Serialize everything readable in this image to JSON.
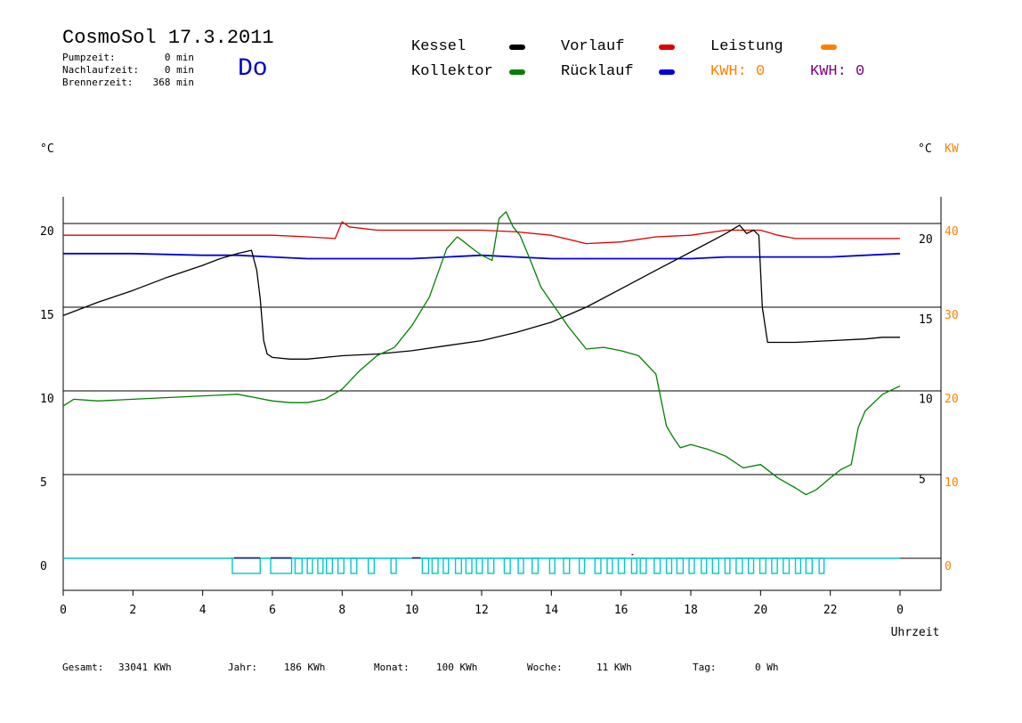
{
  "header": {
    "title": "CosmoSol 17.3.2011",
    "day": "Do",
    "stats": [
      {
        "label": "Pumpzeit:",
        "value": "0 min"
      },
      {
        "label": "Nachlaufzeit:",
        "value": "0 min"
      },
      {
        "label": "Brennerzeit:",
        "value": "368 min"
      }
    ]
  },
  "legend": {
    "kessel": "Kessel",
    "kollektor": "Kollektor",
    "vorlauf": "Vorlauf",
    "ruecklauf": "Rücklauf",
    "leistung": "Leistung",
    "kwh_orange": "KWH: 0",
    "kwh_purple": "KWH: 0"
  },
  "colors": {
    "kessel": "#000000",
    "kollektor": "#008000",
    "vorlauf": "#dc0000",
    "ruecklauf": "#0000dc",
    "leistung": "#ff8000",
    "kwh_purple": "#800080",
    "pump": "#00c8c8",
    "day": "#0000c8"
  },
  "footer": {
    "gesamt_label": "Gesamt:",
    "gesamt_value": "33041 KWh",
    "jahr_label": "Jahr:",
    "jahr_value": "186 KWh",
    "monat_label": "Monat:",
    "monat_value": "100 KWh",
    "woche_label": "Woche:",
    "woche_value": "11 KWh",
    "tag_label": "Tag:",
    "tag_value": "0 Wh"
  },
  "chart_data": {
    "type": "line",
    "ylabel_left": "°C",
    "ylabel_right_1": "°C",
    "ylabel_right_2": "KW",
    "xlabel": "Uhrzeit",
    "xlim": [
      0,
      24
    ],
    "ylim": [
      -1.5,
      22
    ],
    "x_tick_labels": [
      "0",
      "2",
      "4",
      "6",
      "8",
      "10",
      "12",
      "14",
      "16",
      "18",
      "20",
      "22",
      "0"
    ],
    "y_left_ticks": [
      0,
      5,
      10,
      15,
      20
    ],
    "y_right_mid_ticks": [
      5,
      10,
      15,
      20
    ],
    "y_right_kw_ticks": [
      0,
      10,
      20,
      30,
      40
    ],
    "grid": "horizontal",
    "series": [
      {
        "name": "Kessel",
        "key": "kessel",
        "x": [
          0,
          0.5,
          1,
          2,
          3,
          4,
          4.5,
          5,
          5.4,
          5.55,
          5.65,
          5.75,
          5.85,
          6,
          6.5,
          7,
          8,
          9,
          10,
          11,
          12,
          13,
          14,
          15,
          16,
          17,
          18,
          19,
          19.4,
          19.6,
          19.8,
          19.95,
          20.05,
          20.2,
          20.5,
          21,
          22,
          23,
          23.5,
          24
        ],
        "y": [
          14.5,
          14.9,
          15.3,
          16,
          16.8,
          17.5,
          17.9,
          18.2,
          18.4,
          17.2,
          15.5,
          13,
          12.2,
          12,
          11.9,
          11.9,
          12.1,
          12.2,
          12.4,
          12.7,
          13,
          13.5,
          14.1,
          15,
          16.1,
          17.2,
          18.3,
          19.4,
          19.9,
          19.4,
          19.6,
          19.3,
          15,
          12.9,
          12.9,
          12.9,
          13,
          13.1,
          13.2,
          13.2
        ]
      },
      {
        "name": "Kollektor",
        "key": "kollektor",
        "x": [
          0,
          0.3,
          1,
          2,
          3,
          4,
          5,
          5.5,
          6,
          6.5,
          7,
          7.5,
          8,
          8.5,
          9,
          9.5,
          10,
          10.5,
          11,
          11.3,
          11.5,
          11.8,
          12,
          12.3,
          12.5,
          12.7,
          12.9,
          13.1,
          13.4,
          13.7,
          14,
          14.5,
          15,
          15.5,
          16,
          16.5,
          17,
          17.3,
          17.5,
          17.7,
          18,
          18.5,
          19,
          19.5,
          20,
          20.5,
          21,
          21.3,
          21.6,
          22,
          22.3,
          22.6,
          22.8,
          23,
          23.5,
          24
        ],
        "y": [
          9.1,
          9.5,
          9.4,
          9.5,
          9.6,
          9.7,
          9.8,
          9.6,
          9.4,
          9.3,
          9.3,
          9.5,
          10.1,
          11.2,
          12.1,
          12.6,
          13.9,
          15.6,
          18.5,
          19.2,
          18.9,
          18.4,
          18.1,
          17.8,
          20.3,
          20.7,
          19.8,
          19.3,
          17.8,
          16.2,
          15.3,
          13.8,
          12.5,
          12.6,
          12.4,
          12.1,
          11,
          7.9,
          7.2,
          6.6,
          6.8,
          6.5,
          6.1,
          5.4,
          5.6,
          4.8,
          4.2,
          3.8,
          4.1,
          4.8,
          5.3,
          5.6,
          7.8,
          8.8,
          9.8,
          10.3
        ]
      },
      {
        "name": "Vorlauf",
        "key": "vorlauf",
        "x": [
          0,
          2,
          4,
          5,
          6,
          7,
          7.8,
          8,
          8.2,
          9,
          10,
          11,
          12,
          13,
          14,
          15,
          16,
          17,
          18,
          19,
          20,
          20.5,
          21,
          22,
          23,
          24
        ],
        "y": [
          19.3,
          19.3,
          19.3,
          19.3,
          19.3,
          19.2,
          19.1,
          20.1,
          19.8,
          19.6,
          19.6,
          19.6,
          19.6,
          19.5,
          19.3,
          18.8,
          18.9,
          19.2,
          19.3,
          19.6,
          19.6,
          19.3,
          19.1,
          19.1,
          19.1,
          19.1
        ]
      },
      {
        "name": "Rücklauf",
        "key": "ruecklauf",
        "x": [
          0,
          2,
          4,
          5,
          6,
          7,
          8,
          9,
          10,
          11,
          12,
          13,
          14,
          15,
          16,
          17,
          18,
          19,
          20,
          21,
          22,
          23,
          24
        ],
        "y": [
          18.2,
          18.2,
          18.1,
          18.1,
          18,
          17.9,
          17.9,
          17.9,
          17.9,
          18,
          18.1,
          18,
          17.9,
          17.9,
          17.9,
          17.9,
          17.9,
          18,
          18,
          18,
          18,
          18.1,
          18.2
        ]
      }
    ],
    "pump_pulses": {
      "series_name": "Pumpe",
      "ranges": [
        [
          4.85,
          5.65
        ],
        [
          5.95,
          6.55
        ],
        [
          6.65,
          6.85
        ],
        [
          7.0,
          7.15
        ],
        [
          7.3,
          7.45
        ],
        [
          7.55,
          7.72
        ],
        [
          7.88,
          8.05
        ],
        [
          8.25,
          8.42
        ],
        [
          8.75,
          8.92
        ],
        [
          9.4,
          9.55
        ],
        [
          10.3,
          10.48
        ],
        [
          10.58,
          10.75
        ],
        [
          10.9,
          11.05
        ],
        [
          11.25,
          11.42
        ],
        [
          11.55,
          11.72
        ],
        [
          11.85,
          12.02
        ],
        [
          12.18,
          12.35
        ],
        [
          12.65,
          12.82
        ],
        [
          13.05,
          13.2
        ],
        [
          13.45,
          13.62
        ],
        [
          13.95,
          14.1
        ],
        [
          14.35,
          14.52
        ],
        [
          14.8,
          14.95
        ],
        [
          15.25,
          15.42
        ],
        [
          15.6,
          15.75
        ],
        [
          15.92,
          16.1
        ],
        [
          16.3,
          16.45
        ],
        [
          16.55,
          16.72
        ],
        [
          16.95,
          17.12
        ],
        [
          17.3,
          17.45
        ],
        [
          17.6,
          17.78
        ],
        [
          17.95,
          18.1
        ],
        [
          18.3,
          18.45
        ],
        [
          18.62,
          18.8
        ],
        [
          18.98,
          19.12
        ],
        [
          19.3,
          19.48
        ],
        [
          19.65,
          19.8
        ],
        [
          19.98,
          20.15
        ],
        [
          20.32,
          20.48
        ],
        [
          20.65,
          20.82
        ],
        [
          21.0,
          21.15
        ],
        [
          21.3,
          21.48
        ],
        [
          21.68,
          21.82
        ]
      ],
      "level": 0
    },
    "purple_markers": [
      {
        "x": 4.9,
        "x2": 5.65,
        "y": 0
      },
      {
        "x": 5.95,
        "x2": 6.55,
        "y": 0
      },
      {
        "x": 10.0,
        "x2": 10.25,
        "y": 0
      },
      {
        "x": 16.3,
        "x2": 16.35,
        "y": 0.2
      }
    ]
  }
}
